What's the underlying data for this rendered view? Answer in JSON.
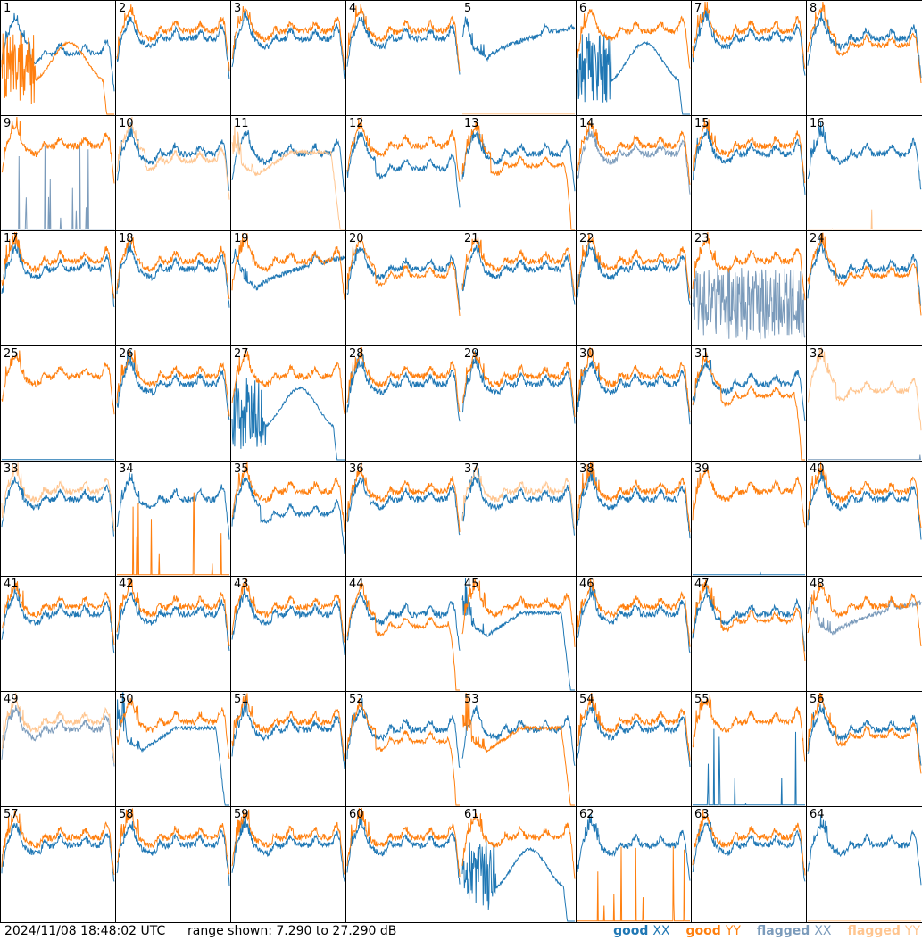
{
  "colors": {
    "good_xx": "#1f77b4",
    "good_yy": "#ff7f0e",
    "flagged_xx": "#7b9bbb",
    "flagged_yy": "#ffc58f"
  },
  "footer": {
    "timestamp": "2024/11/08 18:48:02 UTC",
    "range": "range shown: 7.290 to 27.290 dB"
  },
  "legend": [
    {
      "label": "good",
      "pol": "XX",
      "color": "#1f77b4"
    },
    {
      "label": "good",
      "pol": "YY",
      "color": "#ff7f0e"
    },
    {
      "label": "flagged",
      "pol": "XX",
      "color": "#7b9bbb"
    },
    {
      "label": "flagged",
      "pol": "YY",
      "color": "#ffc58f"
    }
  ],
  "chart_data": {
    "type": "line",
    "ylim": [
      7.29,
      27.29
    ],
    "yunit": "dB",
    "grid": false,
    "legend_position": "bottom-right",
    "panels": [
      {
        "label": "1",
        "xx": {
          "status": "good",
          "shape": "droop"
        },
        "yy": {
          "status": "good",
          "shape": "deep-dip-dropoff"
        }
      },
      {
        "label": "2",
        "xx": {
          "status": "good",
          "shape": "normal"
        },
        "yy": {
          "status": "good",
          "shape": "normal"
        }
      },
      {
        "label": "3",
        "xx": {
          "status": "good",
          "shape": "normal"
        },
        "yy": {
          "status": "good",
          "shape": "normal"
        }
      },
      {
        "label": "4",
        "xx": {
          "status": "good",
          "shape": "normal"
        },
        "yy": {
          "status": "good",
          "shape": "normal"
        }
      },
      {
        "label": "5",
        "xx": {
          "status": "good",
          "shape": "dip"
        },
        "yy": {
          "status": "flagged",
          "shape": "flat-low"
        }
      },
      {
        "label": "6",
        "xx": {
          "status": "good",
          "shape": "deep-dip-dropoff"
        },
        "yy": {
          "status": "good",
          "shape": "normal"
        }
      },
      {
        "label": "7",
        "xx": {
          "status": "good",
          "shape": "normal"
        },
        "yy": {
          "status": "good",
          "shape": "normal"
        }
      },
      {
        "label": "8",
        "xx": {
          "status": "good",
          "shape": "normal"
        },
        "yy": {
          "status": "good",
          "shape": "droop"
        }
      },
      {
        "label": "9",
        "xx": {
          "status": "flagged",
          "shape": "spikes-low"
        },
        "yy": {
          "status": "good",
          "shape": "normal"
        }
      },
      {
        "label": "10",
        "xx": {
          "status": "good",
          "shape": "normal"
        },
        "yy": {
          "status": "flagged",
          "shape": "droop"
        }
      },
      {
        "label": "11",
        "xx": {
          "status": "good",
          "shape": "normal"
        },
        "yy": {
          "status": "flagged",
          "shape": "dip-dropoff"
        }
      },
      {
        "label": "12",
        "xx": {
          "status": "good",
          "shape": "droop"
        },
        "yy": {
          "status": "good",
          "shape": "normal"
        }
      },
      {
        "label": "13",
        "xx": {
          "status": "good",
          "shape": "normal"
        },
        "yy": {
          "status": "good",
          "shape": "droop-dropoff"
        }
      },
      {
        "label": "14",
        "xx": {
          "status": "flagged",
          "shape": "normal"
        },
        "yy": {
          "status": "good",
          "shape": "normal"
        }
      },
      {
        "label": "15",
        "xx": {
          "status": "good",
          "shape": "normal"
        },
        "yy": {
          "status": "good",
          "shape": "normal"
        }
      },
      {
        "label": "16",
        "xx": {
          "status": "good",
          "shape": "normal"
        },
        "yy": {
          "status": "flagged",
          "shape": "flat-low"
        }
      },
      {
        "label": "17",
        "xx": {
          "status": "good",
          "shape": "normal"
        },
        "yy": {
          "status": "good",
          "shape": "normal"
        }
      },
      {
        "label": "18",
        "xx": {
          "status": "good",
          "shape": "normal"
        },
        "yy": {
          "status": "good",
          "shape": "normal"
        }
      },
      {
        "label": "19",
        "xx": {
          "status": "good",
          "shape": "dip"
        },
        "yy": {
          "status": "good",
          "shape": "normal"
        }
      },
      {
        "label": "20",
        "xx": {
          "status": "good",
          "shape": "normal"
        },
        "yy": {
          "status": "good",
          "shape": "droop"
        }
      },
      {
        "label": "21",
        "xx": {
          "status": "good",
          "shape": "normal"
        },
        "yy": {
          "status": "good",
          "shape": "normal"
        }
      },
      {
        "label": "22",
        "xx": {
          "status": "good",
          "shape": "normal"
        },
        "yy": {
          "status": "good",
          "shape": "normal"
        }
      },
      {
        "label": "23",
        "xx": {
          "status": "flagged",
          "shape": "noise-low"
        },
        "yy": {
          "status": "good",
          "shape": "normal"
        }
      },
      {
        "label": "24",
        "xx": {
          "status": "good",
          "shape": "normal"
        },
        "yy": {
          "status": "good",
          "shape": "droop"
        }
      },
      {
        "label": "25",
        "xx": {
          "status": "good",
          "shape": "flat-low"
        },
        "yy": {
          "status": "good",
          "shape": "normal"
        }
      },
      {
        "label": "26",
        "xx": {
          "status": "good",
          "shape": "normal"
        },
        "yy": {
          "status": "good",
          "shape": "normal"
        }
      },
      {
        "label": "27",
        "xx": {
          "status": "good",
          "shape": "deep-dip-dropoff"
        },
        "yy": {
          "status": "good",
          "shape": "normal"
        }
      },
      {
        "label": "28",
        "xx": {
          "status": "good",
          "shape": "normal"
        },
        "yy": {
          "status": "good",
          "shape": "normal"
        }
      },
      {
        "label": "29",
        "xx": {
          "status": "good",
          "shape": "normal"
        },
        "yy": {
          "status": "good",
          "shape": "normal"
        }
      },
      {
        "label": "30",
        "xx": {
          "status": "good",
          "shape": "normal"
        },
        "yy": {
          "status": "good",
          "shape": "normal"
        }
      },
      {
        "label": "31",
        "xx": {
          "status": "good",
          "shape": "normal"
        },
        "yy": {
          "status": "good",
          "shape": "droop-dropoff"
        }
      },
      {
        "label": "32",
        "xx": {
          "status": "flagged",
          "shape": "flat-low"
        },
        "yy": {
          "status": "flagged",
          "shape": "droop"
        }
      },
      {
        "label": "33",
        "xx": {
          "status": "good",
          "shape": "normal"
        },
        "yy": {
          "status": "flagged",
          "shape": "normal"
        }
      },
      {
        "label": "34",
        "xx": {
          "status": "good",
          "shape": "normal"
        },
        "yy": {
          "status": "good",
          "shape": "spikes-low"
        }
      },
      {
        "label": "35",
        "xx": {
          "status": "good",
          "shape": "droop"
        },
        "yy": {
          "status": "good",
          "shape": "normal"
        }
      },
      {
        "label": "36",
        "xx": {
          "status": "good",
          "shape": "normal"
        },
        "yy": {
          "status": "good",
          "shape": "normal"
        }
      },
      {
        "label": "37",
        "xx": {
          "status": "good",
          "shape": "normal"
        },
        "yy": {
          "status": "flagged",
          "shape": "normal"
        }
      },
      {
        "label": "38",
        "xx": {
          "status": "good",
          "shape": "normal"
        },
        "yy": {
          "status": "good",
          "shape": "normal"
        }
      },
      {
        "label": "39",
        "xx": {
          "status": "good",
          "shape": "flat-low"
        },
        "yy": {
          "status": "good",
          "shape": "normal"
        }
      },
      {
        "label": "40",
        "xx": {
          "status": "good",
          "shape": "normal"
        },
        "yy": {
          "status": "good",
          "shape": "normal"
        }
      },
      {
        "label": "41",
        "xx": {
          "status": "good",
          "shape": "normal"
        },
        "yy": {
          "status": "good",
          "shape": "normal"
        }
      },
      {
        "label": "42",
        "xx": {
          "status": "good",
          "shape": "normal"
        },
        "yy": {
          "status": "good",
          "shape": "normal"
        }
      },
      {
        "label": "43",
        "xx": {
          "status": "good",
          "shape": "normal"
        },
        "yy": {
          "status": "good",
          "shape": "normal"
        }
      },
      {
        "label": "44",
        "xx": {
          "status": "good",
          "shape": "normal"
        },
        "yy": {
          "status": "good",
          "shape": "droop-dropoff"
        }
      },
      {
        "label": "45",
        "xx": {
          "status": "good",
          "shape": "dip-dropoff"
        },
        "yy": {
          "status": "good",
          "shape": "normal"
        }
      },
      {
        "label": "46",
        "xx": {
          "status": "good",
          "shape": "normal"
        },
        "yy": {
          "status": "good",
          "shape": "normal"
        }
      },
      {
        "label": "47",
        "xx": {
          "status": "good",
          "shape": "normal"
        },
        "yy": {
          "status": "good",
          "shape": "droop"
        }
      },
      {
        "label": "48",
        "xx": {
          "status": "flagged",
          "shape": "dip"
        },
        "yy": {
          "status": "good",
          "shape": "normal"
        }
      },
      {
        "label": "49",
        "xx": {
          "status": "flagged",
          "shape": "normal"
        },
        "yy": {
          "status": "flagged",
          "shape": "normal"
        }
      },
      {
        "label": "50",
        "xx": {
          "status": "good",
          "shape": "dip-dropoff"
        },
        "yy": {
          "status": "good",
          "shape": "normal"
        }
      },
      {
        "label": "51",
        "xx": {
          "status": "good",
          "shape": "normal"
        },
        "yy": {
          "status": "good",
          "shape": "normal"
        }
      },
      {
        "label": "52",
        "xx": {
          "status": "good",
          "shape": "normal"
        },
        "yy": {
          "status": "good",
          "shape": "droop-dropoff"
        }
      },
      {
        "label": "53",
        "xx": {
          "status": "good",
          "shape": "normal"
        },
        "yy": {
          "status": "good",
          "shape": "dip-dropoff"
        }
      },
      {
        "label": "54",
        "xx": {
          "status": "good",
          "shape": "normal"
        },
        "yy": {
          "status": "good",
          "shape": "normal"
        }
      },
      {
        "label": "55",
        "xx": {
          "status": "good",
          "shape": "spikes-low"
        },
        "yy": {
          "status": "good",
          "shape": "normal"
        }
      },
      {
        "label": "56",
        "xx": {
          "status": "good",
          "shape": "normal"
        },
        "yy": {
          "status": "good",
          "shape": "droop"
        }
      },
      {
        "label": "57",
        "xx": {
          "status": "good",
          "shape": "normal"
        },
        "yy": {
          "status": "good",
          "shape": "normal"
        }
      },
      {
        "label": "58",
        "xx": {
          "status": "good",
          "shape": "normal"
        },
        "yy": {
          "status": "good",
          "shape": "normal"
        }
      },
      {
        "label": "59",
        "xx": {
          "status": "good",
          "shape": "normal"
        },
        "yy": {
          "status": "good",
          "shape": "normal"
        }
      },
      {
        "label": "60",
        "xx": {
          "status": "good",
          "shape": "normal"
        },
        "yy": {
          "status": "good",
          "shape": "normal"
        }
      },
      {
        "label": "61",
        "xx": {
          "status": "good",
          "shape": "deep-dip-dropoff"
        },
        "yy": {
          "status": "good",
          "shape": "normal"
        }
      },
      {
        "label": "62",
        "xx": {
          "status": "good",
          "shape": "normal"
        },
        "yy": {
          "status": "good",
          "shape": "spikes-low"
        }
      },
      {
        "label": "63",
        "xx": {
          "status": "good",
          "shape": "normal"
        },
        "yy": {
          "status": "good",
          "shape": "normal"
        }
      },
      {
        "label": "64",
        "xx": {
          "status": "good",
          "shape": "normal"
        },
        "yy": {
          "status": "flagged",
          "shape": "flat-low"
        }
      }
    ]
  }
}
